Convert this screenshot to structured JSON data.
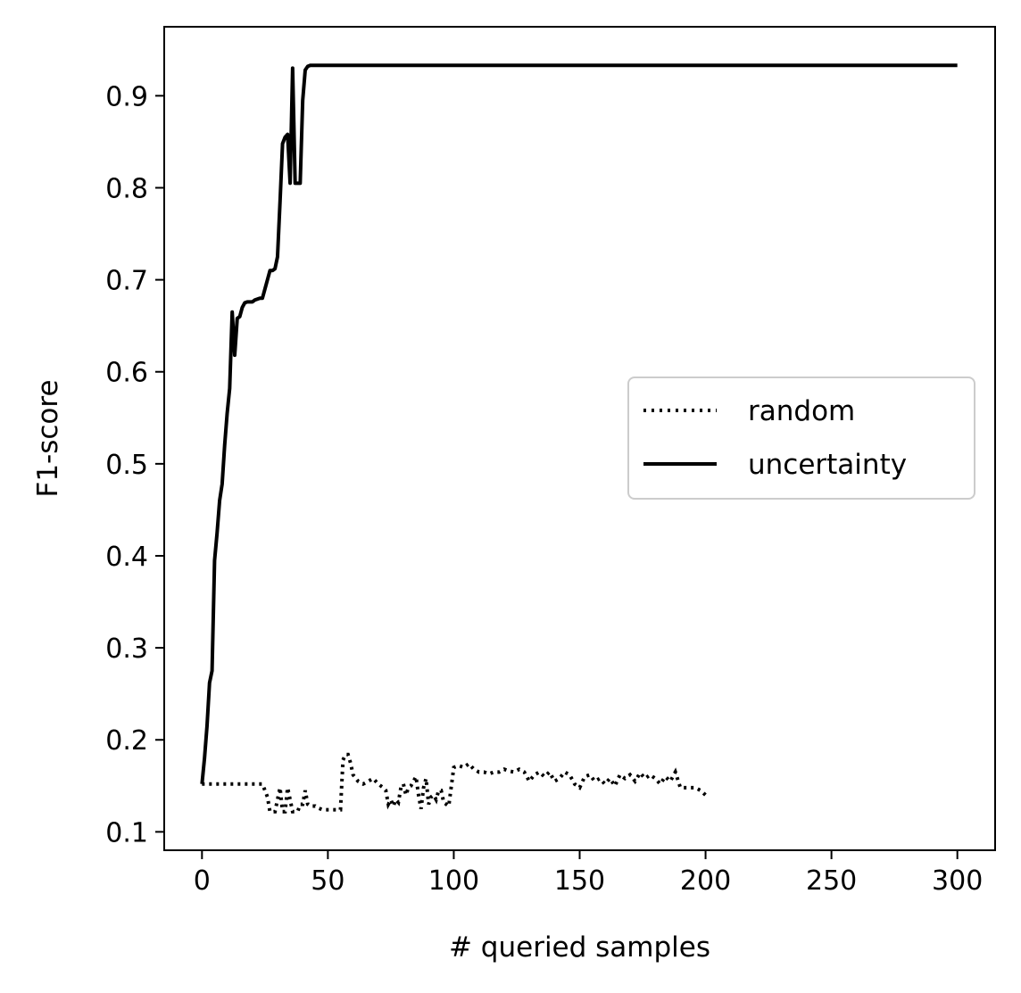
{
  "chart_data": {
    "type": "line",
    "title": "",
    "xlabel": "# queried samples",
    "ylabel": "F1-score",
    "xlim": [
      -15,
      315
    ],
    "ylim": [
      0.08,
      0.975
    ],
    "xticks": [
      0,
      50,
      100,
      150,
      200,
      250,
      300
    ],
    "yticks": [
      0.1,
      0.2,
      0.3,
      0.4,
      0.5,
      0.6,
      0.7,
      0.8,
      0.9
    ],
    "grid": false,
    "legend_position": "center-right",
    "series": [
      {
        "name": "random",
        "style": "dotted",
        "color": "#000000",
        "x": [
          0,
          2,
          4,
          6,
          8,
          10,
          12,
          14,
          16,
          18,
          20,
          22,
          23,
          24,
          25,
          26,
          27,
          28,
          29,
          30,
          31,
          32,
          33,
          34,
          35,
          36,
          37,
          38,
          39,
          40,
          41,
          42,
          43,
          44,
          45,
          46,
          47,
          48,
          49,
          50,
          51,
          52,
          53,
          54,
          55,
          56,
          57,
          58,
          59,
          60,
          62,
          64,
          66,
          68,
          70,
          71,
          72,
          73,
          74,
          75,
          76,
          77,
          78,
          79,
          80,
          81,
          82,
          83,
          84,
          85,
          86,
          87,
          88,
          89,
          90,
          91,
          92,
          93,
          94,
          95,
          96,
          98,
          100,
          102,
          104,
          106,
          108,
          110,
          112,
          114,
          116,
          118,
          120,
          122,
          124,
          126,
          128,
          130,
          132,
          134,
          136,
          138,
          140,
          142,
          144,
          146,
          148,
          150,
          152,
          154,
          156,
          158,
          160,
          162,
          164,
          166,
          168,
          170,
          172,
          174,
          176,
          178,
          180,
          182,
          184,
          186,
          188,
          190,
          192,
          194,
          196,
          198,
          200
        ],
        "y": [
          0.152,
          0.152,
          0.152,
          0.152,
          0.152,
          0.152,
          0.152,
          0.152,
          0.152,
          0.152,
          0.152,
          0.152,
          0.152,
          0.152,
          0.145,
          0.138,
          0.122,
          0.122,
          0.122,
          0.135,
          0.148,
          0.122,
          0.122,
          0.148,
          0.135,
          0.122,
          0.122,
          0.122,
          0.13,
          0.13,
          0.145,
          0.13,
          0.128,
          0.128,
          0.128,
          0.126,
          0.125,
          0.124,
          0.124,
          0.124,
          0.124,
          0.124,
          0.124,
          0.124,
          0.124,
          0.178,
          0.184,
          0.184,
          0.175,
          0.162,
          0.155,
          0.152,
          0.155,
          0.158,
          0.152,
          0.15,
          0.148,
          0.145,
          0.13,
          0.135,
          0.128,
          0.135,
          0.132,
          0.148,
          0.152,
          0.14,
          0.148,
          0.15,
          0.155,
          0.16,
          0.14,
          0.125,
          0.148,
          0.158,
          0.13,
          0.138,
          0.14,
          0.135,
          0.145,
          0.145,
          0.132,
          0.128,
          0.17,
          0.172,
          0.17,
          0.174,
          0.168,
          0.165,
          0.165,
          0.163,
          0.165,
          0.165,
          0.168,
          0.166,
          0.165,
          0.168,
          0.165,
          0.155,
          0.162,
          0.165,
          0.16,
          0.165,
          0.155,
          0.158,
          0.165,
          0.162,
          0.152,
          0.148,
          0.16,
          0.162,
          0.155,
          0.158,
          0.152,
          0.158,
          0.15,
          0.162,
          0.158,
          0.162,
          0.155,
          0.164,
          0.158,
          0.162,
          0.158,
          0.152,
          0.16,
          0.155,
          0.165,
          0.148,
          0.148,
          0.148,
          0.148,
          0.145,
          0.14
        ]
      },
      {
        "name": "uncertainty",
        "style": "solid",
        "color": "#000000",
        "x": [
          0,
          1,
          2,
          3,
          4,
          5,
          6,
          7,
          8,
          9,
          10,
          11,
          12,
          13,
          14,
          15,
          16,
          17,
          18,
          19,
          20,
          21,
          22,
          23,
          24,
          25,
          26,
          27,
          28,
          29,
          30,
          31,
          32,
          33,
          34,
          35,
          36,
          37,
          38,
          39,
          40,
          41,
          42,
          43,
          50,
          100,
          150,
          200,
          250,
          300
        ],
        "y": [
          0.152,
          0.18,
          0.215,
          0.262,
          0.275,
          0.395,
          0.425,
          0.46,
          0.478,
          0.52,
          0.555,
          0.582,
          0.665,
          0.618,
          0.658,
          0.66,
          0.67,
          0.675,
          0.676,
          0.676,
          0.676,
          0.678,
          0.679,
          0.68,
          0.68,
          0.69,
          0.7,
          0.71,
          0.71,
          0.712,
          0.725,
          0.785,
          0.848,
          0.855,
          0.858,
          0.805,
          0.93,
          0.805,
          0.805,
          0.805,
          0.895,
          0.928,
          0.932,
          0.933,
          0.933,
          0.933,
          0.933,
          0.933,
          0.933,
          0.933
        ]
      }
    ]
  }
}
